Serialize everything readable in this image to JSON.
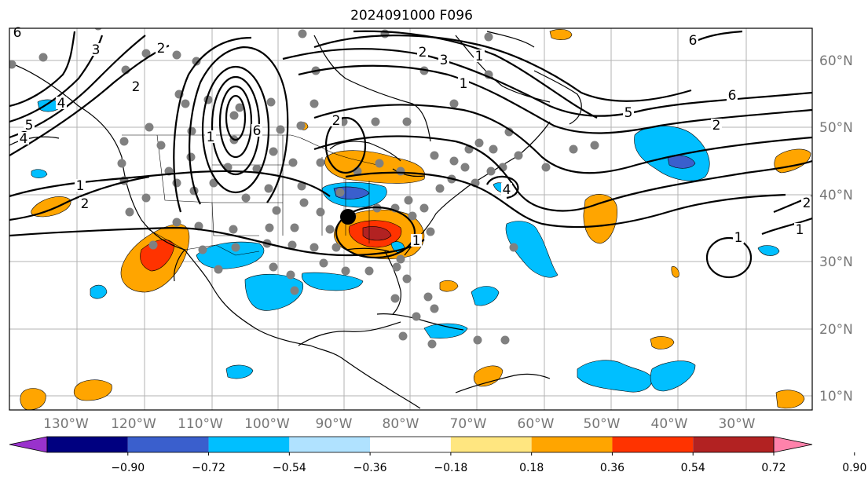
{
  "title": "2024091000 F096",
  "lon_labels": [
    "130°W",
    "120°W",
    "110°W",
    "100°W",
    "90°W",
    "80°W",
    "70°W",
    "60°W",
    "50°W",
    "40°W",
    "30°W"
  ],
  "lat_labels": [
    "60°N",
    "50°N",
    "40°N",
    "30°N",
    "20°N",
    "10°N"
  ],
  "colorbar": {
    "ticks": [
      "−0.90",
      "−0.72",
      "−0.54",
      "−0.36",
      "−0.18",
      "0.18",
      "0.36",
      "0.54",
      "0.72",
      "0.90"
    ],
    "colors": [
      "#9932cc",
      "#000080",
      "#3a5fcd",
      "#00bfff",
      "#b0e2ff",
      "#ffffff",
      "#ffe680",
      "#ffa500",
      "#ff3300",
      "#b22222",
      "#ff82ab"
    ]
  },
  "contour_labels": [
    {
      "text": "6"
    },
    {
      "text": "2"
    },
    {
      "text": "3"
    },
    {
      "text": "3"
    },
    {
      "text": "1"
    },
    {
      "text": "2"
    },
    {
      "text": "6"
    },
    {
      "text": "5"
    },
    {
      "text": "4"
    },
    {
      "text": "1"
    },
    {
      "text": "2"
    },
    {
      "text": "6"
    },
    {
      "text": "2"
    },
    {
      "text": "4"
    },
    {
      "text": "1"
    },
    {
      "text": "5"
    },
    {
      "text": "6"
    },
    {
      "text": "2"
    },
    {
      "text": "1"
    },
    {
      "text": "1"
    },
    {
      "text": "2"
    },
    {
      "text": "1"
    },
    {
      "text": "4"
    },
    {
      "text": "1"
    },
    {
      "text": "2"
    }
  ]
}
